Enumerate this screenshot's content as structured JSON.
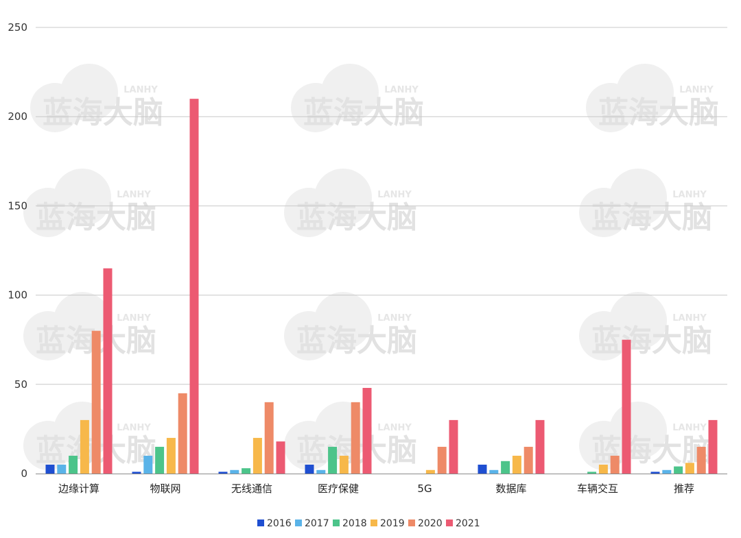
{
  "chart_data": {
    "type": "bar",
    "title": "",
    "xlabel": "",
    "ylabel": "",
    "ylim": [
      0,
      250
    ],
    "yticks": [
      0,
      50,
      100,
      150,
      200,
      250
    ],
    "grid": true,
    "legend_position": "bottom-center",
    "categories": [
      "边缘计算",
      "物联网",
      "无线通信",
      "医疗保健",
      "5G",
      "数据库",
      "车辆交互",
      "推荐"
    ],
    "series": [
      {
        "name": "2016",
        "color": "#1f4fd1",
        "values": [
          5,
          1,
          1,
          5,
          0,
          5,
          0,
          1
        ]
      },
      {
        "name": "2017",
        "color": "#5ab3e8",
        "values": [
          5,
          10,
          2,
          2,
          0,
          2,
          0,
          2
        ]
      },
      {
        "name": "2018",
        "color": "#4cc48a",
        "values": [
          10,
          15,
          3,
          15,
          0,
          7,
          1,
          4
        ]
      },
      {
        "name": "2019",
        "color": "#f7b84a",
        "values": [
          30,
          20,
          20,
          10,
          2,
          10,
          5,
          6
        ]
      },
      {
        "name": "2020",
        "color": "#ee8a67",
        "values": [
          80,
          45,
          40,
          40,
          15,
          15,
          10,
          15
        ]
      },
      {
        "name": "2021",
        "color": "#ec5a72",
        "values": [
          115,
          210,
          18,
          48,
          30,
          30,
          75,
          30
        ]
      }
    ]
  },
  "watermark": {
    "text": "蓝海大脑",
    "sub": "LANHY"
  }
}
